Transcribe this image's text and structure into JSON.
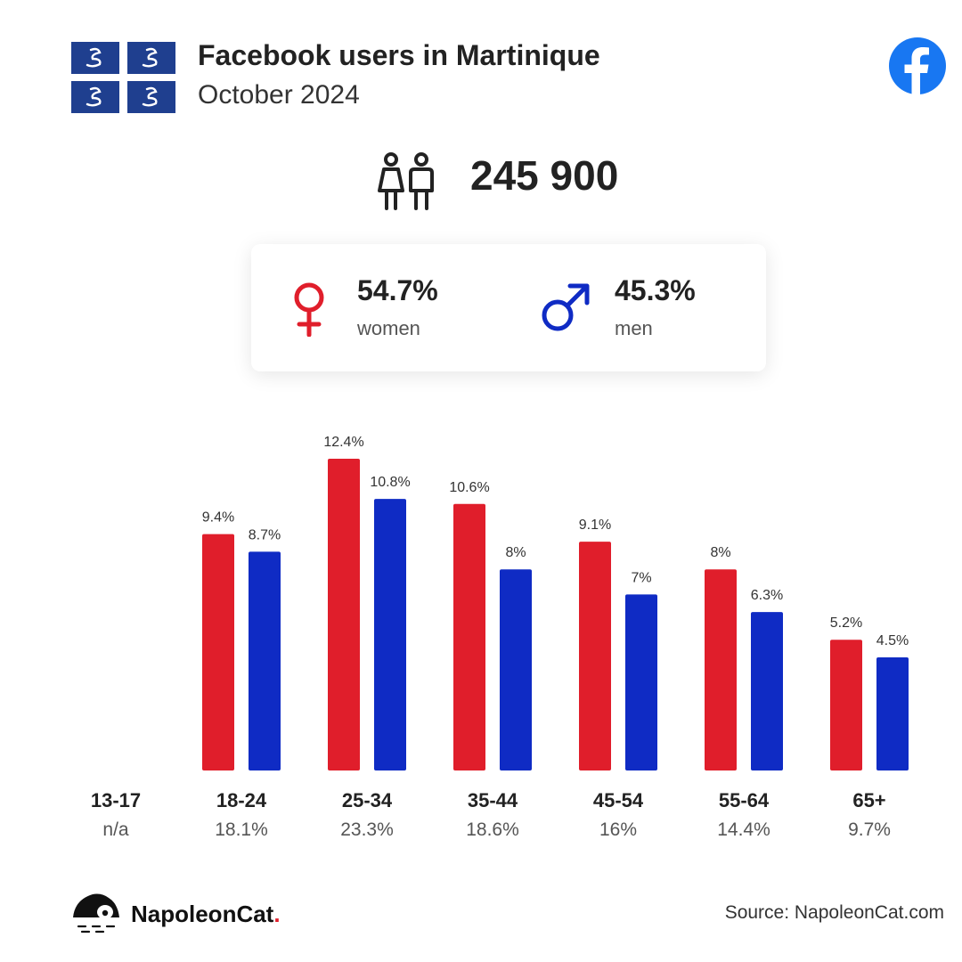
{
  "header": {
    "title": "Facebook users in Martinique",
    "subtitle": "October 2024"
  },
  "icons": {
    "flag": "martinique-flag-icon",
    "brand": "facebook-logo-icon",
    "users": "users-icon",
    "female": "female-symbol-icon",
    "male": "male-symbol-icon"
  },
  "total_users": "245 900",
  "gender": {
    "women": {
      "percent": "54.7%",
      "label": "women",
      "color": "#e01e2b"
    },
    "men": {
      "percent": "45.3%",
      "label": "men",
      "color": "#0f2bc4"
    }
  },
  "chart_data": {
    "type": "bar",
    "categories": [
      "13-17",
      "18-24",
      "25-34",
      "35-44",
      "45-54",
      "55-64",
      "65+"
    ],
    "category_totals": [
      "n/a",
      "18.1%",
      "23.3%",
      "18.6%",
      "16%",
      "14.4%",
      "9.7%"
    ],
    "series": [
      {
        "key": "women",
        "color": "#e01e2b",
        "values": [
          null,
          9.4,
          12.4,
          10.6,
          9.1,
          8,
          5.2
        ],
        "labels": [
          "",
          "9.4%",
          "12.4%",
          "10.6%",
          "9.1%",
          "8%",
          "5.2%"
        ]
      },
      {
        "key": "men",
        "color": "#0f2bc4",
        "values": [
          null,
          8.7,
          10.8,
          8,
          7,
          6.3,
          4.5
        ],
        "labels": [
          "",
          "8.7%",
          "10.8%",
          "8%",
          "7%",
          "6.3%",
          "4.5%"
        ]
      }
    ],
    "ylim": [
      0,
      12.4
    ],
    "grid": false,
    "legend": "none"
  },
  "footer": {
    "brand_name": "NapoleonCat",
    "brand_dot": ".",
    "source": "Source: NapoleonCat.com"
  }
}
